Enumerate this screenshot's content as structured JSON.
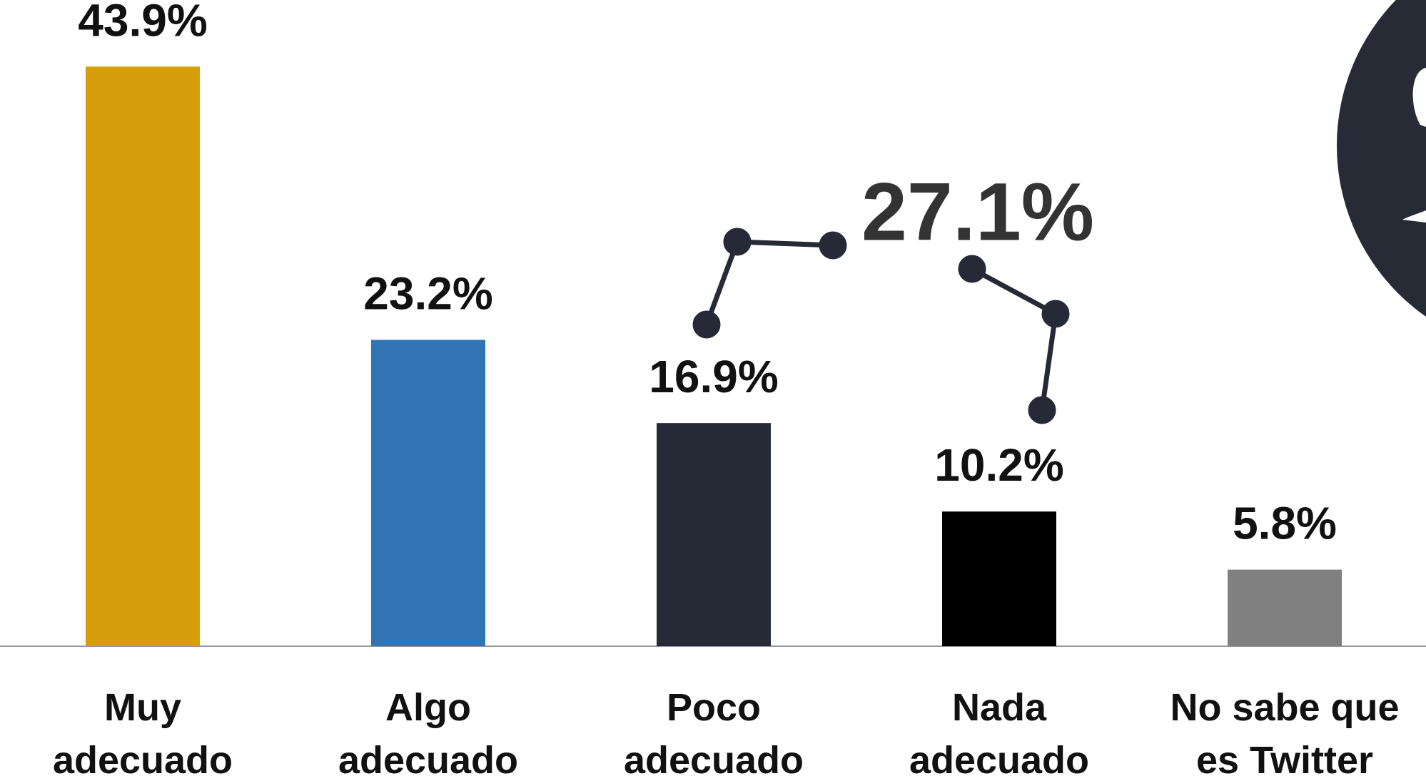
{
  "chart_data": {
    "type": "bar",
    "categories": [
      "Muy\nadecuado",
      "Algo\nadecuado",
      "Poco\nadecuado",
      "Nada\nadecuado",
      "No sabe que\nes Twitter"
    ],
    "values": [
      43.9,
      23.2,
      16.9,
      10.2,
      5.8
    ],
    "value_labels": [
      "43.9%",
      "23.2%",
      "16.9%",
      "10.2%",
      "5.8%"
    ],
    "colors": [
      "#d69e0a",
      "#3174b4",
      "#252a36",
      "#000000",
      "#808080"
    ],
    "ylim": [
      0,
      45
    ],
    "annotation": "27.1%"
  }
}
